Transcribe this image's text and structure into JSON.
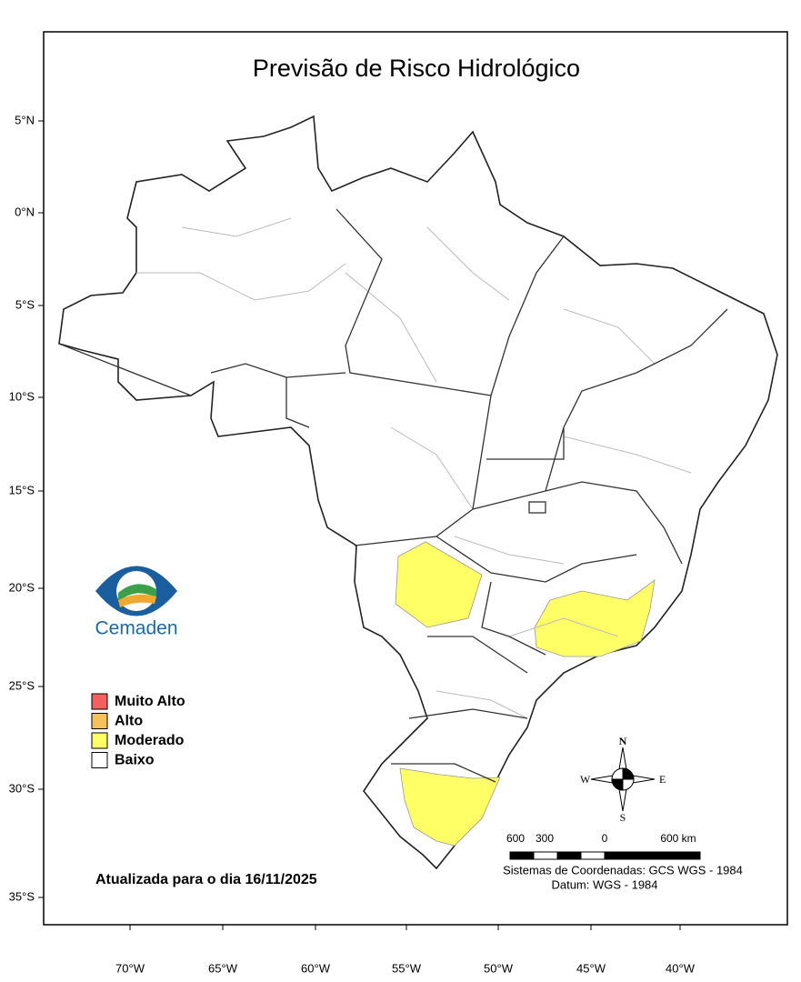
{
  "header": {
    "title": "Previsão de Risco Hidrológico"
  },
  "axes": {
    "latitude": [
      "5°N",
      "0°N",
      "5°S",
      "10°S",
      "15°S",
      "20°S",
      "25°S",
      "30°S",
      "35°S"
    ],
    "longitude": [
      "70°W",
      "65°W",
      "60°W",
      "55°W",
      "50°W",
      "45°W",
      "40°W"
    ]
  },
  "legend": {
    "items": [
      {
        "label": "Muito Alto",
        "color": "#f26060"
      },
      {
        "label": "Alto",
        "color": "#f7c25c"
      },
      {
        "label": "Moderado",
        "color": "#ffff66"
      },
      {
        "label": "Baixo",
        "color": "#ffffff"
      }
    ]
  },
  "logo": {
    "text": "Cemaden"
  },
  "update_note": "Atualizada para o dia 16/11/2025",
  "compass": {
    "n": "N",
    "e": "E",
    "s": "S",
    "w": "W"
  },
  "scale_bar": {
    "labels": [
      "600",
      "300",
      "0",
      "600 km"
    ]
  },
  "projection": {
    "system": "Sistemas de Coordenadas: GCS WGS - 1984",
    "datum": "Datum: WGS - 1984"
  }
}
